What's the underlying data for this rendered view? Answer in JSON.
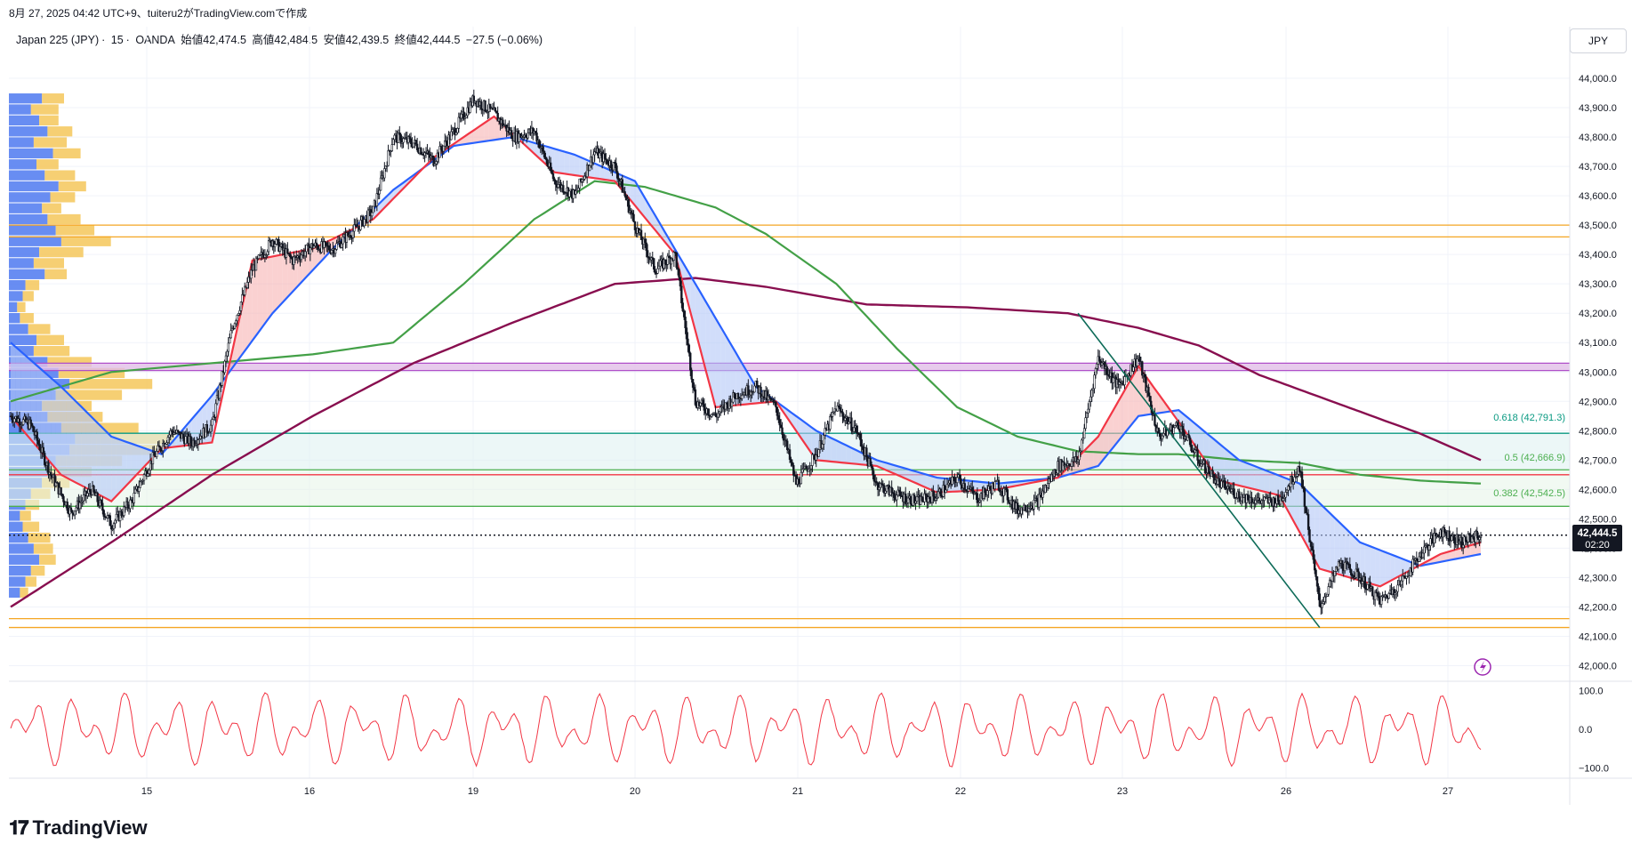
{
  "header": {
    "created_text": "8月 27, 2025 04:42 UTC+9、tuiteru2がTradingView.comで作成"
  },
  "symbol_bar": {
    "symbol": "Japan 225 (JPY)",
    "interval": "15",
    "source": "OANDA",
    "open_label": "始値42,474.5",
    "high_label": "高値42,484.5",
    "low_label": "安値42,439.5",
    "close_label": "終値42,444.5",
    "change": "−27.5 (−0.06%)"
  },
  "currency_button": "JPY",
  "price_tag": {
    "price": "42,444.5",
    "countdown": "02:20"
  },
  "fib_labels": {
    "f618": "0.618 (42,791.3)",
    "f50": "0.5 (42,666.9)",
    "f382": "0.382 (42,542.5)"
  },
  "brand": "TradingView",
  "colors": {
    "candle": "#131722",
    "ema_fast": "#f23645",
    "ema_mid": "#2962ff",
    "sma_green": "#43a047",
    "sma_maroon": "#880e4f",
    "fill_up": "#f7b3b3",
    "fill_down": "#b3c7f7",
    "vp_up": "#4d79f0",
    "vp_down": "#f5c75a",
    "hline_orange": "#f5a623",
    "hline_purple": "#b04fc9",
    "fib_teal": "#089981",
    "fib_green": "#4caf50",
    "fib_red": "#f23645",
    "trendline": "#0d6b58",
    "oscillator": "#f23645"
  },
  "chart_data": {
    "type": "line",
    "subtype": "candlestick",
    "title": "",
    "xlabel": "",
    "ylabel": "",
    "x_ticks": [
      "15",
      "16",
      "19",
      "20",
      "21",
      "22",
      "23",
      "26",
      "27"
    ],
    "y_ticks": [
      "44,000.0",
      "43,900.0",
      "43,800.0",
      "43,700.0",
      "43,600.0",
      "43,500.0",
      "43,400.0",
      "43,300.0",
      "43,200.0",
      "43,100.0",
      "43,000.0",
      "42,900.0",
      "42,800.0",
      "42,700.0",
      "42,600.0",
      "42,500.0",
      "42,400.0",
      "42,300.0",
      "42,200.0",
      "42,100.0",
      "42,000.0"
    ],
    "ylim": [
      41950,
      44100
    ],
    "grid": true,
    "legend": "none",
    "price_path": [
      [
        0,
        42850
      ],
      [
        4,
        42820
      ],
      [
        8,
        42650
      ],
      [
        12,
        42520
      ],
      [
        16,
        42600
      ],
      [
        20,
        42480
      ],
      [
        24,
        42560
      ],
      [
        28,
        42700
      ],
      [
        32,
        42800
      ],
      [
        36,
        42760
      ],
      [
        40,
        42820
      ],
      [
        44,
        43150
      ],
      [
        48,
        43350
      ],
      [
        52,
        43450
      ],
      [
        56,
        43380
      ],
      [
        60,
        43430
      ],
      [
        64,
        43420
      ],
      [
        68,
        43480
      ],
      [
        72,
        43550
      ],
      [
        76,
        43800
      ],
      [
        80,
        43780
      ],
      [
        84,
        43720
      ],
      [
        88,
        43820
      ],
      [
        92,
        43930
      ],
      [
        96,
        43880
      ],
      [
        100,
        43800
      ],
      [
        104,
        43820
      ],
      [
        108,
        43650
      ],
      [
        112,
        43600
      ],
      [
        116,
        43750
      ],
      [
        120,
        43700
      ],
      [
        124,
        43500
      ],
      [
        128,
        43350
      ],
      [
        132,
        43400
      ],
      [
        136,
        42900
      ],
      [
        140,
        42850
      ],
      [
        144,
        42920
      ],
      [
        148,
        42950
      ],
      [
        152,
        42880
      ],
      [
        156,
        42620
      ],
      [
        160,
        42720
      ],
      [
        164,
        42880
      ],
      [
        168,
        42800
      ],
      [
        172,
        42620
      ],
      [
        176,
        42580
      ],
      [
        180,
        42560
      ],
      [
        184,
        42580
      ],
      [
        188,
        42640
      ],
      [
        192,
        42570
      ],
      [
        196,
        42620
      ],
      [
        200,
        42530
      ],
      [
        204,
        42560
      ],
      [
        208,
        42680
      ],
      [
        212,
        42700
      ],
      [
        216,
        43050
      ],
      [
        220,
        42950
      ],
      [
        224,
        43050
      ],
      [
        228,
        42780
      ],
      [
        232,
        42820
      ],
      [
        236,
        42700
      ],
      [
        240,
        42620
      ],
      [
        244,
        42580
      ],
      [
        248,
        42560
      ],
      [
        252,
        42560
      ],
      [
        256,
        42680
      ],
      [
        260,
        42200
      ],
      [
        264,
        42350
      ],
      [
        268,
        42300
      ],
      [
        272,
        42220
      ],
      [
        276,
        42280
      ],
      [
        280,
        42380
      ],
      [
        284,
        42460
      ],
      [
        288,
        42420
      ],
      [
        292,
        42445
      ]
    ],
    "ema_fast": [
      [
        0,
        42850
      ],
      [
        10,
        42650
      ],
      [
        20,
        42560
      ],
      [
        30,
        42740
      ],
      [
        40,
        42760
      ],
      [
        48,
        43380
      ],
      [
        60,
        43420
      ],
      [
        72,
        43520
      ],
      [
        84,
        43730
      ],
      [
        96,
        43870
      ],
      [
        108,
        43680
      ],
      [
        120,
        43650
      ],
      [
        132,
        43400
      ],
      [
        140,
        42880
      ],
      [
        152,
        42900
      ],
      [
        160,
        42700
      ],
      [
        172,
        42680
      ],
      [
        184,
        42590
      ],
      [
        196,
        42600
      ],
      [
        208,
        42640
      ],
      [
        216,
        42780
      ],
      [
        224,
        43020
      ],
      [
        232,
        42830
      ],
      [
        240,
        42630
      ],
      [
        252,
        42580
      ],
      [
        260,
        42330
      ],
      [
        272,
        42270
      ],
      [
        284,
        42380
      ],
      [
        292,
        42420
      ]
    ],
    "ema_mid": [
      [
        0,
        43100
      ],
      [
        10,
        42950
      ],
      [
        20,
        42780
      ],
      [
        30,
        42720
      ],
      [
        40,
        42920
      ],
      [
        52,
        43200
      ],
      [
        64,
        43420
      ],
      [
        76,
        43620
      ],
      [
        88,
        43770
      ],
      [
        100,
        43800
      ],
      [
        112,
        43740
      ],
      [
        124,
        43650
      ],
      [
        136,
        43300
      ],
      [
        148,
        42950
      ],
      [
        160,
        42800
      ],
      [
        172,
        42700
      ],
      [
        184,
        42640
      ],
      [
        196,
        42620
      ],
      [
        208,
        42640
      ],
      [
        216,
        42680
      ],
      [
        224,
        42850
      ],
      [
        232,
        42870
      ],
      [
        244,
        42700
      ],
      [
        256,
        42620
      ],
      [
        268,
        42420
      ],
      [
        280,
        42340
      ],
      [
        292,
        42380
      ]
    ],
    "sma_green": [
      [
        0,
        42900
      ],
      [
        20,
        43000
      ],
      [
        40,
        43030
      ],
      [
        60,
        43060
      ],
      [
        76,
        43100
      ],
      [
        90,
        43300
      ],
      [
        104,
        43520
      ],
      [
        116,
        43650
      ],
      [
        126,
        43630
      ],
      [
        140,
        43560
      ],
      [
        150,
        43470
      ],
      [
        164,
        43300
      ],
      [
        176,
        43080
      ],
      [
        188,
        42880
      ],
      [
        200,
        42780
      ],
      [
        212,
        42730
      ],
      [
        224,
        42720
      ],
      [
        232,
        42720
      ],
      [
        244,
        42700
      ],
      [
        256,
        42690
      ],
      [
        268,
        42650
      ],
      [
        280,
        42630
      ],
      [
        292,
        42620
      ]
    ],
    "sma_maroon": [
      [
        0,
        42200
      ],
      [
        20,
        42420
      ],
      [
        40,
        42650
      ],
      [
        60,
        42850
      ],
      [
        80,
        43030
      ],
      [
        100,
        43170
      ],
      [
        120,
        43300
      ],
      [
        136,
        43320
      ],
      [
        150,
        43290
      ],
      [
        170,
        43230
      ],
      [
        190,
        43220
      ],
      [
        210,
        43200
      ],
      [
        224,
        43150
      ],
      [
        236,
        43090
      ],
      [
        248,
        42990
      ],
      [
        264,
        42890
      ],
      [
        280,
        42790
      ],
      [
        292,
        42700
      ]
    ],
    "oscillator": {
      "ylim": [
        -120,
        120
      ],
      "ticks": [
        "100.0",
        "0.0",
        "−100.0"
      ]
    },
    "volume_profile": {
      "up": [
        60,
        40,
        55,
        70,
        45,
        80,
        50,
        65,
        90,
        75,
        60,
        70,
        85,
        95,
        55,
        45,
        65,
        30,
        25,
        15,
        20,
        35,
        50,
        45,
        70,
        90,
        110,
        85,
        60,
        70,
        95,
        120,
        110,
        85,
        70,
        60,
        40,
        30,
        20,
        25,
        35,
        45,
        55,
        40,
        30,
        20
      ],
      "down": [
        40,
        50,
        35,
        45,
        60,
        50,
        40,
        55,
        50,
        45,
        35,
        60,
        70,
        90,
        80,
        55,
        40,
        25,
        20,
        15,
        25,
        40,
        50,
        65,
        80,
        120,
        150,
        120,
        90,
        100,
        140,
        180,
        170,
        120,
        80,
        50,
        35,
        25,
        20,
        30,
        40,
        35,
        30,
        25,
        20,
        15
      ]
    },
    "horizontal_levels": [
      {
        "price": 43500,
        "color": "orange"
      },
      {
        "price": 43460,
        "color": "orange"
      },
      {
        "price": 43030,
        "color": "purple"
      },
      {
        "price": 43005,
        "color": "purple"
      },
      {
        "price": 42791.3,
        "color": "fib_teal"
      },
      {
        "price": 42666.9,
        "color": "fib_green"
      },
      {
        "price": 42650,
        "color": "fib_red"
      },
      {
        "price": 42542.5,
        "color": "fib_green"
      },
      {
        "price": 42160,
        "color": "orange"
      },
      {
        "price": 42130,
        "color": "orange"
      }
    ],
    "trendline": [
      [
        212,
        43200
      ],
      [
        260,
        42130
      ]
    ]
  }
}
